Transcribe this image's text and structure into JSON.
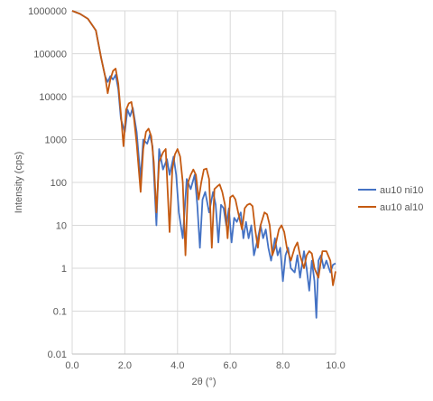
{
  "chart_data": {
    "type": "line",
    "title": "",
    "xlabel": "2θ (°)",
    "ylabel": "Intensity (cps)",
    "xlim": [
      0,
      10
    ],
    "ylim": [
      0.01,
      1000000
    ],
    "yscale": "log",
    "grid": true,
    "legend_position": "right",
    "x_ticks": [
      "0.0",
      "2.0",
      "4.0",
      "6.0",
      "8.0",
      "10.0"
    ],
    "y_ticks": [
      "0.01",
      "0.1",
      "1",
      "10",
      "100",
      "1000",
      "10000",
      "100000",
      "1000000"
    ],
    "series": [
      {
        "name": "au10 ni10",
        "color": "#4472c4",
        "x": [
          0.0,
          0.3,
          0.6,
          0.9,
          1.1,
          1.25,
          1.35,
          1.45,
          1.55,
          1.65,
          1.75,
          1.85,
          2.0,
          2.1,
          2.2,
          2.3,
          2.45,
          2.6,
          2.7,
          2.85,
          2.95,
          3.05,
          3.2,
          3.3,
          3.45,
          3.6,
          3.7,
          3.85,
          3.95,
          4.05,
          4.2,
          4.35,
          4.5,
          4.65,
          4.75,
          4.85,
          4.95,
          5.05,
          5.2,
          5.35,
          5.45,
          5.55,
          5.65,
          5.75,
          5.85,
          5.95,
          6.05,
          6.15,
          6.25,
          6.4,
          6.5,
          6.6,
          6.7,
          6.8,
          6.9,
          7.05,
          7.15,
          7.25,
          7.35,
          7.45,
          7.55,
          7.7,
          7.8,
          7.9,
          8.0,
          8.1,
          8.2,
          8.3,
          8.45,
          8.55,
          8.65,
          8.8,
          8.9,
          9.0,
          9.1,
          9.2,
          9.27,
          9.35,
          9.45,
          9.55,
          9.65,
          9.8,
          9.9,
          10.0
        ],
        "values": [
          1000000,
          850000,
          650000,
          350000,
          80000,
          30000,
          22000,
          30000,
          25000,
          32000,
          15000,
          3000,
          1500,
          5000,
          3500,
          5500,
          1500,
          120,
          1000,
          800,
          1300,
          700,
          10,
          600,
          200,
          350,
          150,
          400,
          150,
          20,
          5,
          120,
          70,
          150,
          30,
          3,
          40,
          60,
          20,
          60,
          30,
          4,
          30,
          25,
          10,
          25,
          4,
          15,
          12,
          20,
          5,
          12,
          5,
          10,
          2,
          5,
          10,
          5,
          8,
          3,
          1.5,
          5,
          2,
          3,
          0.5,
          2,
          3,
          1,
          0.8,
          2,
          0.6,
          2.5,
          1,
          0.3,
          1.5,
          0.5,
          0.07,
          1.5,
          2,
          1,
          1.5,
          0.8,
          1.2,
          1.3
        ]
      },
      {
        "name": "au10 al10",
        "color": "#c55a11",
        "x": [
          0.0,
          0.3,
          0.6,
          0.9,
          1.1,
          1.25,
          1.35,
          1.45,
          1.55,
          1.65,
          1.75,
          1.85,
          1.95,
          2.05,
          2.15,
          2.25,
          2.35,
          2.45,
          2.6,
          2.7,
          2.8,
          2.9,
          3.0,
          3.1,
          3.2,
          3.3,
          3.45,
          3.55,
          3.7,
          3.8,
          3.9,
          4.0,
          4.1,
          4.2,
          4.3,
          4.4,
          4.5,
          4.6,
          4.7,
          4.8,
          4.9,
          5.0,
          5.1,
          5.2,
          5.3,
          5.4,
          5.5,
          5.6,
          5.7,
          5.8,
          5.9,
          6.0,
          6.1,
          6.2,
          6.3,
          6.45,
          6.55,
          6.65,
          6.75,
          6.85,
          6.95,
          7.05,
          7.15,
          7.3,
          7.4,
          7.5,
          7.6,
          7.7,
          7.85,
          7.95,
          8.05,
          8.15,
          8.3,
          8.45,
          8.55,
          8.65,
          8.8,
          8.9,
          9.0,
          9.1,
          9.2,
          9.35,
          9.5,
          9.65,
          9.8,
          9.9,
          10.0
        ],
        "values": [
          1000000,
          850000,
          650000,
          350000,
          80000,
          30000,
          12000,
          25000,
          40000,
          45000,
          20000,
          4000,
          700,
          5000,
          7000,
          7500,
          3000,
          800,
          60,
          600,
          1500,
          1800,
          1200,
          300,
          20,
          300,
          500,
          600,
          7,
          200,
          450,
          600,
          400,
          100,
          2,
          100,
          150,
          200,
          150,
          40,
          100,
          200,
          210,
          120,
          3,
          70,
          80,
          90,
          60,
          30,
          5,
          45,
          50,
          40,
          20,
          8,
          25,
          30,
          32,
          28,
          8,
          3,
          10,
          20,
          18,
          10,
          2,
          3,
          8,
          10,
          7,
          3,
          1.5,
          3,
          4,
          2,
          1,
          2,
          2.5,
          2.2,
          1,
          0.6,
          2.5,
          2.5,
          1.5,
          0.4,
          0.85
        ]
      }
    ]
  }
}
